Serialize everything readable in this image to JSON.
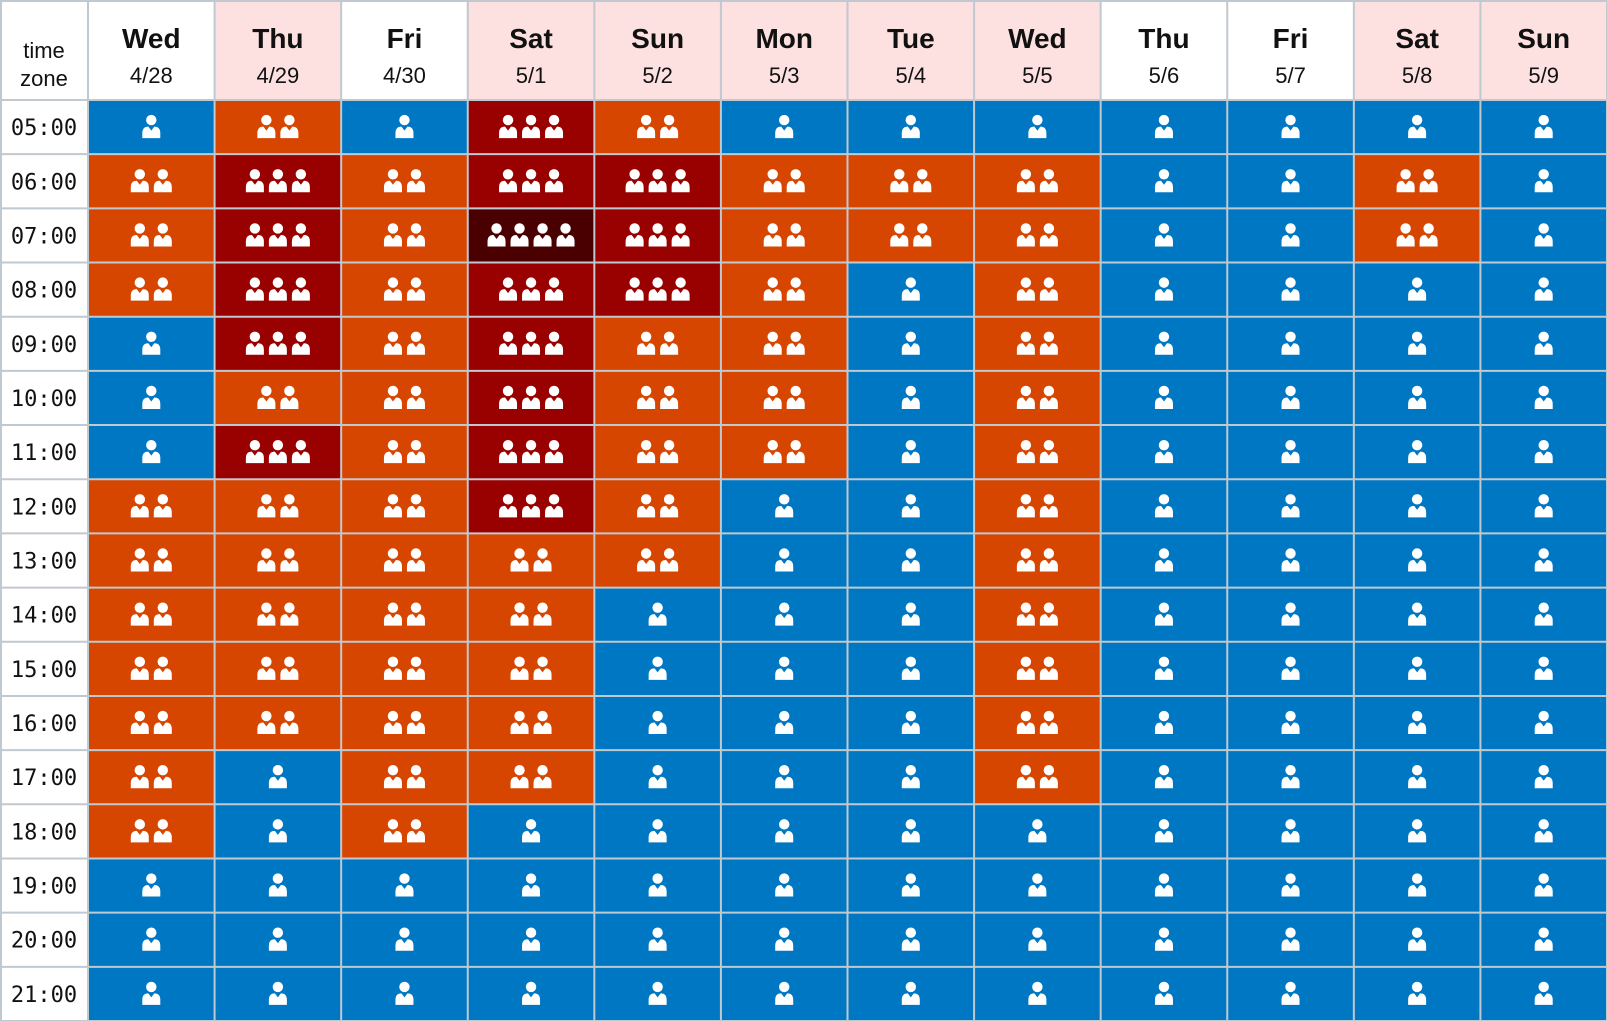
{
  "chart_data": {
    "type": "heatmap",
    "corner_label": [
      "time",
      "zone"
    ],
    "columns": [
      {
        "day": "Wed",
        "date": "4/28",
        "holiday": false
      },
      {
        "day": "Thu",
        "date": "4/29",
        "holiday": true
      },
      {
        "day": "Fri",
        "date": "4/30",
        "holiday": false
      },
      {
        "day": "Sat",
        "date": "5/1",
        "holiday": true
      },
      {
        "day": "Sun",
        "date": "5/2",
        "holiday": true
      },
      {
        "day": "Mon",
        "date": "5/3",
        "holiday": true
      },
      {
        "day": "Tue",
        "date": "5/4",
        "holiday": true
      },
      {
        "day": "Wed",
        "date": "5/5",
        "holiday": true
      },
      {
        "day": "Thu",
        "date": "5/6",
        "holiday": false
      },
      {
        "day": "Fri",
        "date": "5/7",
        "holiday": false
      },
      {
        "day": "Sat",
        "date": "5/8",
        "holiday": true
      },
      {
        "day": "Sun",
        "date": "5/9",
        "holiday": true
      }
    ],
    "rows": [
      "05:00",
      "06:00",
      "07:00",
      "08:00",
      "09:00",
      "10:00",
      "11:00",
      "12:00",
      "13:00",
      "14:00",
      "15:00",
      "16:00",
      "17:00",
      "18:00",
      "19:00",
      "20:00",
      "21:00"
    ],
    "values": [
      [
        1,
        2,
        1,
        3,
        2,
        1,
        1,
        1,
        1,
        1,
        1,
        1
      ],
      [
        2,
        3,
        2,
        3,
        3,
        2,
        2,
        2,
        1,
        1,
        2,
        1
      ],
      [
        2,
        3,
        2,
        4,
        3,
        2,
        2,
        2,
        1,
        1,
        2,
        1
      ],
      [
        2,
        3,
        2,
        3,
        3,
        2,
        1,
        2,
        1,
        1,
        1,
        1
      ],
      [
        1,
        3,
        2,
        3,
        2,
        2,
        1,
        2,
        1,
        1,
        1,
        1
      ],
      [
        1,
        2,
        2,
        3,
        2,
        2,
        1,
        2,
        1,
        1,
        1,
        1
      ],
      [
        1,
        3,
        2,
        3,
        2,
        2,
        1,
        2,
        1,
        1,
        1,
        1
      ],
      [
        2,
        2,
        2,
        3,
        2,
        1,
        1,
        2,
        1,
        1,
        1,
        1
      ],
      [
        2,
        2,
        2,
        2,
        2,
        1,
        1,
        2,
        1,
        1,
        1,
        1
      ],
      [
        2,
        2,
        2,
        2,
        1,
        1,
        1,
        2,
        1,
        1,
        1,
        1
      ],
      [
        2,
        2,
        2,
        2,
        1,
        1,
        1,
        2,
        1,
        1,
        1,
        1
      ],
      [
        2,
        2,
        2,
        2,
        1,
        1,
        1,
        2,
        1,
        1,
        1,
        1
      ],
      [
        2,
        1,
        2,
        2,
        1,
        1,
        1,
        2,
        1,
        1,
        1,
        1
      ],
      [
        2,
        1,
        2,
        1,
        1,
        1,
        1,
        1,
        1,
        1,
        1,
        1
      ],
      [
        1,
        1,
        1,
        1,
        1,
        1,
        1,
        1,
        1,
        1,
        1,
        1
      ],
      [
        1,
        1,
        1,
        1,
        1,
        1,
        1,
        1,
        1,
        1,
        1,
        1
      ],
      [
        1,
        1,
        1,
        1,
        1,
        1,
        1,
        1,
        1,
        1,
        1,
        1
      ]
    ],
    "level_colors": {
      "1": "#0077c2",
      "2": "#d64600",
      "3": "#990000",
      "4": "#4a0000"
    },
    "header_colors": {
      "weekday": "#ffffff",
      "holiday": "#fde0e0"
    },
    "icon": "person-icon",
    "icon_color": "#ffffff",
    "grid_color": "#c0c8d0"
  }
}
